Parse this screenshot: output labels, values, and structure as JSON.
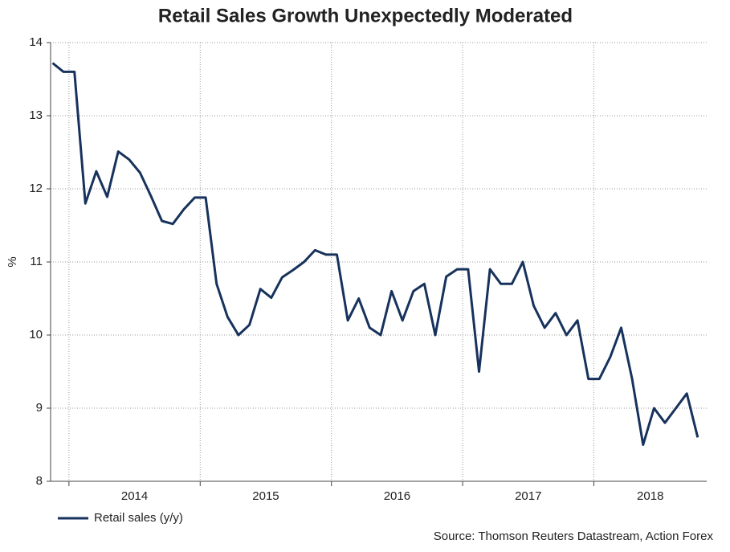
{
  "chart_data": {
    "type": "line",
    "title": "Retail Sales Growth Unexpectedly Moderated",
    "y_label": "%",
    "source": "Source: Thomson Reuters Datastream, Action Forex",
    "x": [
      "2013-11",
      "2013-12",
      "2014-01",
      "2014-02",
      "2014-03",
      "2014-04",
      "2014-05",
      "2014-06",
      "2014-07",
      "2014-08",
      "2014-09",
      "2014-10",
      "2014-11",
      "2014-12",
      "2015-01",
      "2015-02",
      "2015-03",
      "2015-04",
      "2015-05",
      "2015-06",
      "2015-07",
      "2015-08",
      "2015-09",
      "2015-10",
      "2015-11",
      "2015-12",
      "2016-01",
      "2016-02",
      "2016-03",
      "2016-04",
      "2016-05",
      "2016-06",
      "2016-07",
      "2016-08",
      "2016-09",
      "2016-10",
      "2016-11",
      "2016-12",
      "2017-01",
      "2017-02",
      "2017-03",
      "2017-04",
      "2017-05",
      "2017-06",
      "2017-07",
      "2017-08",
      "2017-09",
      "2017-10",
      "2017-11",
      "2017-12",
      "2018-01",
      "2018-02",
      "2018-03",
      "2018-04",
      "2018-05",
      "2018-06",
      "2018-07",
      "2018-08",
      "2018-09",
      "2018-10"
    ],
    "series": [
      {
        "name": "Retail sales (y/y)",
        "color": "#17325c",
        "values": [
          13.72,
          13.6,
          13.6,
          11.8,
          12.24,
          11.89,
          12.51,
          12.4,
          12.22,
          11.9,
          11.56,
          11.52,
          11.72,
          11.88,
          11.88,
          10.7,
          10.25,
          10.0,
          10.14,
          10.63,
          10.51,
          10.79,
          10.89,
          11.0,
          11.16,
          11.1,
          11.1,
          10.2,
          10.5,
          10.1,
          10.0,
          10.6,
          10.2,
          10.6,
          10.7,
          10.0,
          10.8,
          10.9,
          10.9,
          9.5,
          10.9,
          10.7,
          10.7,
          11.0,
          10.4,
          10.1,
          10.3,
          10.0,
          10.2,
          9.4,
          9.4,
          9.7,
          10.1,
          9.4,
          8.5,
          9.0,
          8.8,
          9.0,
          9.2,
          8.6
        ]
      }
    ],
    "xlim": [
      2013.86,
      2018.86
    ],
    "xticks": [
      2014,
      2015,
      2016,
      2017,
      2018
    ],
    "ylim": [
      8,
      14
    ],
    "yticks": [
      8,
      9,
      10,
      11,
      12,
      13,
      14
    ],
    "grid": true,
    "legend": "bottom-left"
  }
}
